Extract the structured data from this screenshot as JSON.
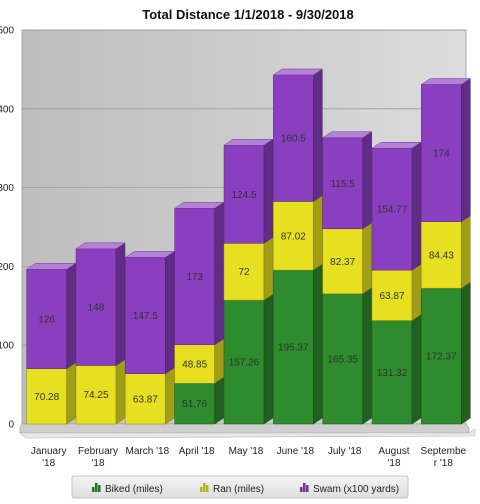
{
  "chart_data": {
    "type": "bar",
    "stacked": true,
    "title": "Total Distance 1/1/2018 - 9/30/2018",
    "categories": [
      [
        "January",
        "'18"
      ],
      [
        "February",
        "'18"
      ],
      [
        "March '18"
      ],
      [
        "April '18"
      ],
      [
        "May '18"
      ],
      [
        "June '18"
      ],
      [
        "July '18"
      ],
      [
        "August",
        "'18"
      ],
      [
        "Septembe",
        "r '18"
      ]
    ],
    "series": [
      {
        "name": "Biked (miles)",
        "color": "#2e8b2e",
        "values": [
          0,
          0,
          0,
          51.76,
          157.26,
          195.37,
          165.35,
          131.32,
          172.37
        ]
      },
      {
        "name": "Ran (miles)",
        "color": "#e6e020",
        "values": [
          70.28,
          74.25,
          63.87,
          48.85,
          72,
          87.02,
          82.37,
          63.87,
          84.43
        ]
      },
      {
        "name": "Swam (x100 yards)",
        "color": "#8a3fc0",
        "values": [
          126,
          148,
          147.5,
          173,
          124.5,
          160.5,
          115.5,
          154.77,
          174
        ]
      }
    ],
    "labels": [
      [
        null,
        null,
        null,
        "51.76",
        "157.26",
        "195.37",
        "165.35",
        "131.32",
        "172.37"
      ],
      [
        "70.28",
        "74.25",
        "63.87",
        "48.85",
        "72",
        "87.02",
        "82.37",
        "63.87",
        "84.43"
      ],
      [
        "126",
        "148",
        "147.5",
        "173",
        "124.5",
        "160.5",
        "115.5",
        "154.77",
        "174"
      ]
    ],
    "yticks": [
      "0",
      "100",
      "200",
      "300",
      "400",
      "500"
    ],
    "ylim": [
      0,
      500
    ],
    "grid": true,
    "legend_position": "bottom"
  }
}
